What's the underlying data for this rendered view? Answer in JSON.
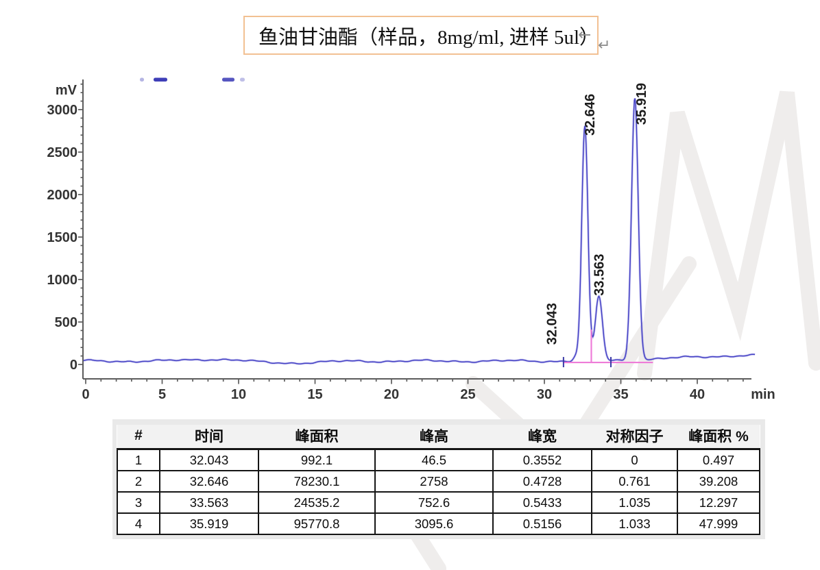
{
  "page": {
    "background": "#ffffff"
  },
  "title_box": {
    "text": "鱼油甘油酯（样品，8mg/ml, 进样  5ul）",
    "line_break_mark": "←",
    "paragraph_mark": "↵",
    "border_color": "#f2c092"
  },
  "chart_data": {
    "type": "line",
    "kind": "chromatogram",
    "xlabel": "min",
    "ylabel": "mV",
    "xlim": [
      0,
      43.6
    ],
    "ylim": [
      0,
      3350
    ],
    "x_ticks": [
      0,
      5,
      10,
      15,
      20,
      25,
      30,
      35,
      40
    ],
    "x_minor_step": 1,
    "y_ticks": [
      0,
      500,
      1000,
      1500,
      2000,
      2500,
      3000
    ],
    "y_minor_step": 100,
    "grid": false,
    "legend": "none",
    "baseline_mV": 40,
    "colors": {
      "trace": "#4340c4",
      "trace_glow": "rgba(105,100,215,0.30)",
      "integration": "#ee7cd8",
      "axis": "#5c5c5c",
      "tick_label": "#343434",
      "peak_label": "#1c1c1c",
      "watermark": "#efedec"
    },
    "peaks": [
      {
        "label": "32.043",
        "rt": 32.043,
        "area": 992.1,
        "height_mV": 46.5,
        "width_min": 0.3552,
        "symmetry": 0,
        "area_pct": 0.497,
        "label_offset": [
          -28,
          -18
        ]
      },
      {
        "label": "32.646",
        "rt": 32.646,
        "area": 78230.1,
        "height_mV": 2758,
        "width_min": 0.4728,
        "symmetry": 0.761,
        "area_pct": 39.208,
        "label_offset": [
          14,
          13
        ]
      },
      {
        "label": "33.563",
        "rt": 33.563,
        "area": 24535.2,
        "height_mV": 752.6,
        "width_min": 0.5433,
        "symmetry": 1.035,
        "area_pct": 12.297,
        "label_offset": [
          7,
          -2
        ]
      },
      {
        "label": "35.919",
        "rt": 35.919,
        "area": 95770.8,
        "height_mV": 3095.6,
        "width_min": 0.5156,
        "symmetry": 1.033,
        "area_pct": 47.999,
        "label_offset": [
          16,
          39
        ]
      }
    ],
    "integration": {
      "baseline_start_min": 31.25,
      "baseline_end_min": 37.1,
      "valley_drop_min": 33.07,
      "valley_top_mV": 410,
      "event_marks_min": [
        31.25,
        34.35
      ]
    }
  },
  "table": {
    "columns": [
      "#",
      "时间",
      "峰面积",
      "峰高",
      "峰宽",
      "对称因子",
      "峰面积 %"
    ],
    "rows": [
      [
        "1",
        "32.043",
        "992.1",
        "46.5",
        "0.3552",
        "0",
        "0.497"
      ],
      [
        "2",
        "32.646",
        "78230.1",
        "2758",
        "0.4728",
        "0.761",
        "39.208"
      ],
      [
        "3",
        "33.563",
        "24535.2",
        "752.6",
        "0.5433",
        "1.035",
        "12.297"
      ],
      [
        "4",
        "35.919",
        "95770.8",
        "3095.6",
        "0.5156",
        "1.033",
        "47.999"
      ]
    ]
  }
}
